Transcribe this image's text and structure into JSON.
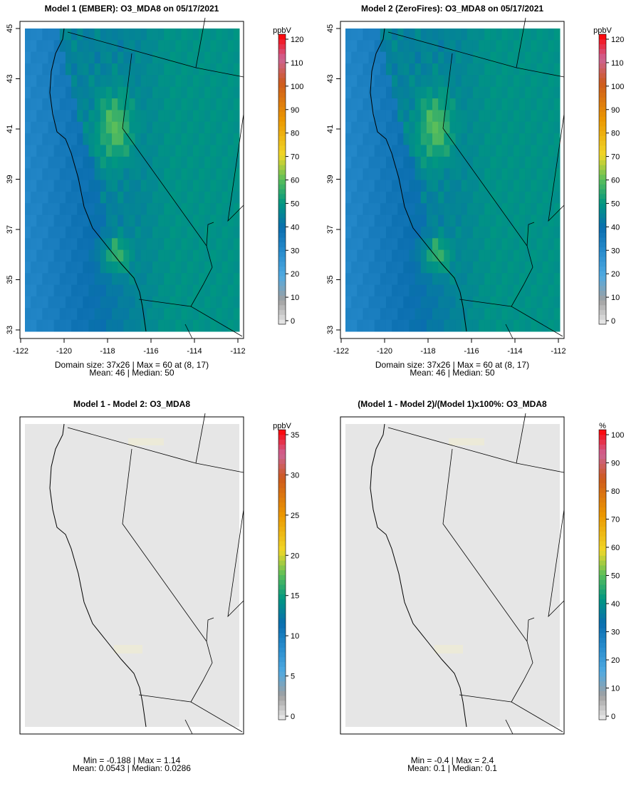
{
  "panels": [
    {
      "title": "Model 1 (EMBER): O3_MDA8 on 05/17/2021",
      "unit": "ppbV",
      "cb_max": 120,
      "cb_step": 10,
      "stats1": "Domain size: 37x26 | Max = 60 at (8, 17)",
      "stats2": "Mean: 46 |  Median: 50",
      "kind": "o3",
      "axes": true
    },
    {
      "title": "Model 2 (ZeroFires): O3_MDA8 on 05/17/2021",
      "unit": "ppbV",
      "cb_max": 120,
      "cb_step": 10,
      "stats1": "Domain size: 37x26 | Max = 60 at (8, 17)",
      "stats2": "Mean: 46 |  Median: 50",
      "kind": "o3",
      "axes": true
    },
    {
      "title": "Model 1 - Model 2: O3_MDA8",
      "unit": "ppbV",
      "cb_max": 35,
      "cb_step": 5,
      "stats1": "Min = -0.188 | Max = 1.14",
      "stats2": "Mean: 0.0543 |  Median: 0.0286",
      "kind": "diff",
      "axes": false
    },
    {
      "title": "(Model 1 - Model 2)/(Model 1)x100%: O3_MDA8",
      "unit": "%",
      "cb_max": 100,
      "cb_step": 10,
      "stats1": "Min = -0.4 | Max = 2.4",
      "stats2": "Mean: 0.1 |  Median: 0.1",
      "kind": "diff",
      "axes": false
    }
  ],
  "axes": {
    "lat_ticks": [
      "45",
      "43",
      "41",
      "39",
      "37",
      "35",
      "33"
    ],
    "lon_ticks": [
      "-122",
      "-120",
      "-118",
      "-116",
      "-114",
      "-112"
    ]
  },
  "chart_data": {
    "type": "heatmap",
    "grid": "37x26",
    "lon_range": [
      -122,
      -112
    ],
    "lat_range": [
      33,
      45
    ],
    "variable": "O3_MDA8"
  }
}
